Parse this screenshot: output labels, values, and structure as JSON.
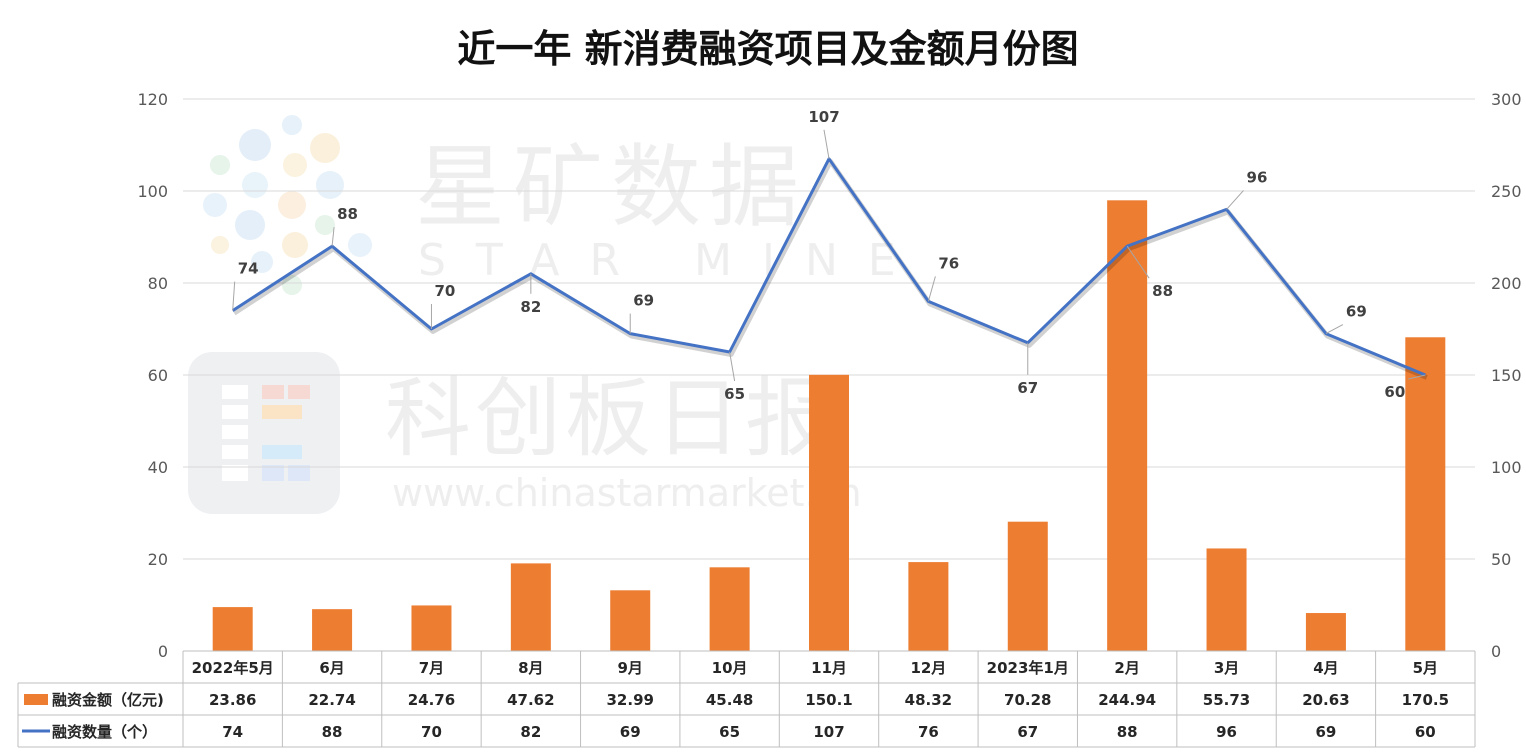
{
  "chart_data": {
    "type": "bar",
    "title": "近一年 新消费融资项目及金额月份图",
    "categories": [
      "2022年5月",
      "6月",
      "7月",
      "8月",
      "9月",
      "10月",
      "11月",
      "12月",
      "2023年1月",
      "2月",
      "3月",
      "4月",
      "5月"
    ],
    "series": [
      {
        "name": "融资金额（亿元)",
        "type": "bar",
        "axis": "left",
        "color": "#ed7d31",
        "values": [
          23.86,
          22.74,
          24.76,
          47.62,
          32.99,
          45.48,
          150.1,
          48.32,
          70.28,
          244.94,
          55.73,
          20.63,
          170.5
        ],
        "value_labels": [
          "23.86",
          "22.74",
          "24.76",
          "47.62",
          "32.99",
          "45.48",
          "150.1",
          "48.32",
          "70.28",
          "244.94",
          "55.73",
          "20.63",
          "170.5"
        ]
      },
      {
        "name": "融资数量（个）",
        "type": "line",
        "axis": "right",
        "color": "#4472c4",
        "values": [
          74,
          88,
          70,
          82,
          69,
          65,
          107,
          76,
          67,
          88,
          96,
          69,
          60
        ],
        "value_labels": [
          "74",
          "88",
          "70",
          "82",
          "69",
          "65",
          "107",
          "76",
          "67",
          "88",
          "96",
          "69",
          "60"
        ]
      }
    ],
    "left_axis": {
      "min": 0,
      "max": 120,
      "ticks": [
        "0",
        "20",
        "40",
        "60",
        "80",
        "100",
        "120"
      ]
    },
    "right_axis": {
      "min": 0,
      "max": 300,
      "ticks": [
        "0",
        "50",
        "100",
        "150",
        "200",
        "250",
        "300"
      ]
    },
    "grid": true,
    "data_table": true,
    "legend_placement": "data-table"
  },
  "watermark": {
    "brand_cn": "星矿数据",
    "brand_en": "STAR MINE",
    "paper_cn": "科创板日报",
    "url": "www.chinastarmarket.cn"
  }
}
